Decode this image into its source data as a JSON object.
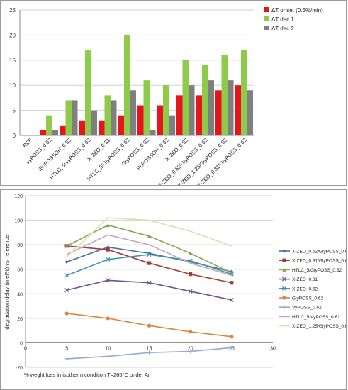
{
  "chart_data": [
    {
      "type": "bar",
      "title": "",
      "xlabel": "",
      "ylabel": "",
      "ylim": [
        0,
        25
      ],
      "yticks": [
        0,
        5,
        10,
        15,
        20,
        25
      ],
      "grid": true,
      "legend_position": "top-right",
      "categories": [
        "REF",
        "VyPOSS_0.62",
        "iBuPOSSOH_0.62",
        "HTLC_5/VyPOSS_0.62",
        "X-ZEO_0.31",
        "HTLC_5/GlyPOSS_0.62",
        "GlyPOSS_0.62",
        "PhPOSSOH_0.62",
        "X-ZEO_0.62",
        "X-ZEO_0.62/GlyPOSS_0.62",
        "X-ZEO_1.25/GlyPOSS_0.62",
        "X-ZEO_0.31/GlyPOSS_0.62"
      ],
      "series": [
        {
          "name": "ΔT onset (0.5%/min)",
          "color": "#e8141c",
          "values": [
            0,
            1,
            2,
            3,
            3,
            4,
            6,
            6,
            8,
            8,
            9,
            10
          ]
        },
        {
          "name": "ΔT dec 1",
          "color": "#8ecb4a",
          "values": [
            0,
            4,
            7,
            17,
            8,
            20,
            11,
            10,
            15,
            14,
            16,
            17
          ]
        },
        {
          "name": "ΔT dec 2",
          "color": "#7f7f7f",
          "values": [
            0,
            1,
            7,
            5,
            7,
            9,
            1,
            4,
            10,
            11,
            11,
            9
          ]
        }
      ]
    },
    {
      "type": "line",
      "title": "",
      "xlabel": "% weght loss in isotherm condition  T=265°C under Ar",
      "ylabel": "degradation delay time(%) vs. reference",
      "xlim": [
        0,
        30
      ],
      "ylim": [
        -20,
        120
      ],
      "xticks": [
        0,
        5,
        10,
        15,
        20,
        25,
        30
      ],
      "yticks": [
        -20,
        0,
        20,
        40,
        60,
        80,
        100,
        120
      ],
      "grid": true,
      "legend_position": "right",
      "x": [
        5,
        10,
        15,
        20,
        25
      ],
      "series": [
        {
          "name": "X-ZEO_0.62/GlyPOSS_0.62",
          "color": "#4a6fa5",
          "marker": "diamond",
          "values": [
            66,
            78,
            73,
            66,
            58
          ]
        },
        {
          "name": "X-ZEO_0.31/GlyPOSS_0.62",
          "color": "#a33b38",
          "marker": "square",
          "values": [
            79,
            76,
            65,
            56,
            49
          ]
        },
        {
          "name": "HTLC_5/GlyPOSS_0.62",
          "color": "#89a54e",
          "marker": "triangle",
          "values": [
            79,
            96,
            87,
            73,
            57
          ]
        },
        {
          "name": "X-ZEO_0.31",
          "color": "#6e548d",
          "marker": "x",
          "values": [
            43,
            51,
            49,
            42,
            35
          ]
        },
        {
          "name": "X-ZEO_0.62",
          "color": "#3d96ae",
          "marker": "x",
          "values": [
            55,
            68,
            72,
            67,
            56
          ]
        },
        {
          "name": "GlyPOSS_0.62",
          "color": "#db843d",
          "marker": "circle",
          "values": [
            24,
            20,
            14,
            9,
            5
          ]
        },
        {
          "name": "VyPOSS_0.62",
          "color": "#93a9cf",
          "marker": "plus",
          "values": [
            -13,
            -11,
            -8,
            -7,
            -4
          ]
        },
        {
          "name": "HTLC_5/VyPOSS_0.62",
          "color": "#c9a4b8",
          "marker": "none",
          "values": [
            72,
            88,
            80,
            65,
            55
          ]
        },
        {
          "name": "X-ZEO_1.25/GlyPOSS_0.62",
          "color": "#d7e4a8",
          "marker": "none",
          "values": [
            70,
            102,
            100,
            91,
            79
          ]
        }
      ]
    }
  ]
}
